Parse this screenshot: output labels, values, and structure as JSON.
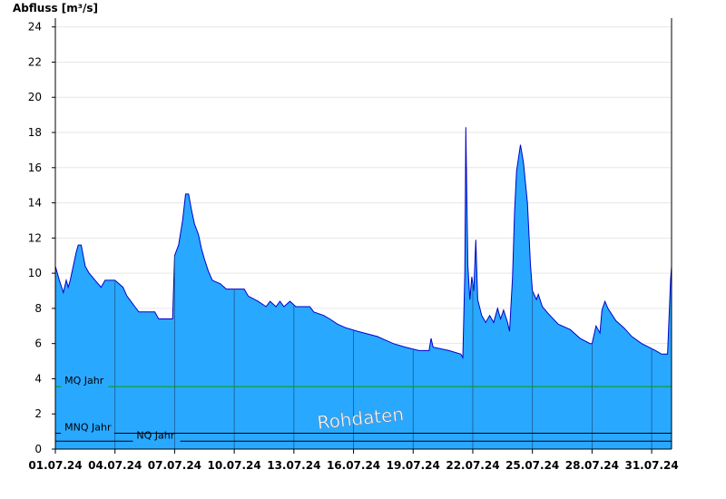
{
  "chart_data": {
    "type": "area",
    "ylabel": "Abfluss [m³/s]",
    "ylim": [
      0,
      24.5
    ],
    "yticks": [
      0,
      2,
      4,
      6,
      8,
      10,
      12,
      14,
      16,
      18,
      20,
      22,
      24
    ],
    "xlim": [
      0,
      31
    ],
    "xticks": [
      {
        "day": 0,
        "label": "01.07.24"
      },
      {
        "day": 3,
        "label": "04.07.24"
      },
      {
        "day": 6,
        "label": "07.07.24"
      },
      {
        "day": 9,
        "label": "10.07.24"
      },
      {
        "day": 12,
        "label": "13.07.24"
      },
      {
        "day": 15,
        "label": "16.07.24"
      },
      {
        "day": 18,
        "label": "19.07.24"
      },
      {
        "day": 21,
        "label": "22.07.24"
      },
      {
        "day": 24,
        "label": "25.07.24"
      },
      {
        "day": 27,
        "label": "28.07.24"
      },
      {
        "day": 30,
        "label": "31.07.24"
      }
    ],
    "grid": true,
    "fill_color": "#29a8ff",
    "line_color": "#0000cc",
    "series": [
      {
        "points": [
          [
            0.0,
            10.4
          ],
          [
            0.2,
            9.6
          ],
          [
            0.4,
            8.9
          ],
          [
            0.55,
            9.6
          ],
          [
            0.65,
            9.2
          ],
          [
            0.75,
            9.6
          ],
          [
            0.9,
            10.4
          ],
          [
            1.05,
            11.2
          ],
          [
            1.15,
            11.6
          ],
          [
            1.3,
            11.6
          ],
          [
            1.4,
            11.0
          ],
          [
            1.5,
            10.4
          ],
          [
            1.7,
            10.0
          ],
          [
            2.0,
            9.6
          ],
          [
            2.3,
            9.2
          ],
          [
            2.5,
            9.6
          ],
          [
            3.0,
            9.6
          ],
          [
            3.4,
            9.2
          ],
          [
            3.6,
            8.7
          ],
          [
            3.8,
            8.4
          ],
          [
            4.0,
            8.1
          ],
          [
            4.2,
            7.8
          ],
          [
            5.0,
            7.8
          ],
          [
            5.2,
            7.4
          ],
          [
            5.9,
            7.4
          ],
          [
            6.0,
            11.0
          ],
          [
            6.2,
            11.6
          ],
          [
            6.4,
            13.0
          ],
          [
            6.55,
            14.5
          ],
          [
            6.7,
            14.5
          ],
          [
            6.85,
            13.6
          ],
          [
            7.0,
            12.8
          ],
          [
            7.2,
            12.2
          ],
          [
            7.35,
            11.4
          ],
          [
            7.5,
            10.8
          ],
          [
            7.7,
            10.1
          ],
          [
            7.9,
            9.6
          ],
          [
            8.3,
            9.4
          ],
          [
            8.6,
            9.1
          ],
          [
            9.5,
            9.1
          ],
          [
            9.7,
            8.7
          ],
          [
            10.2,
            8.4
          ],
          [
            10.6,
            8.1
          ],
          [
            10.8,
            8.4
          ],
          [
            11.1,
            8.1
          ],
          [
            11.3,
            8.4
          ],
          [
            11.5,
            8.1
          ],
          [
            11.8,
            8.4
          ],
          [
            12.1,
            8.1
          ],
          [
            12.8,
            8.1
          ],
          [
            13.0,
            7.8
          ],
          [
            13.5,
            7.6
          ],
          [
            13.8,
            7.4
          ],
          [
            14.2,
            7.1
          ],
          [
            14.6,
            6.9
          ],
          [
            15.2,
            6.7
          ],
          [
            16.2,
            6.4
          ],
          [
            16.6,
            6.2
          ],
          [
            17.0,
            6.0
          ],
          [
            17.6,
            5.8
          ],
          [
            18.3,
            5.6
          ],
          [
            18.8,
            5.6
          ],
          [
            18.9,
            6.3
          ],
          [
            19.0,
            5.8
          ],
          [
            19.8,
            5.6
          ],
          [
            20.4,
            5.4
          ],
          [
            20.5,
            5.2
          ],
          [
            20.6,
            10.0
          ],
          [
            20.65,
            18.3
          ],
          [
            20.75,
            10.5
          ],
          [
            20.85,
            8.5
          ],
          [
            20.95,
            9.8
          ],
          [
            21.05,
            9.0
          ],
          [
            21.15,
            11.9
          ],
          [
            21.25,
            8.5
          ],
          [
            21.45,
            7.6
          ],
          [
            21.65,
            7.2
          ],
          [
            21.85,
            7.6
          ],
          [
            22.05,
            7.2
          ],
          [
            22.25,
            8.0
          ],
          [
            22.4,
            7.4
          ],
          [
            22.55,
            7.9
          ],
          [
            22.75,
            7.2
          ],
          [
            22.85,
            6.7
          ],
          [
            23.0,
            9.8
          ],
          [
            23.1,
            13.5
          ],
          [
            23.2,
            15.8
          ],
          [
            23.4,
            17.3
          ],
          [
            23.55,
            16.3
          ],
          [
            23.75,
            14.0
          ],
          [
            23.9,
            10.5
          ],
          [
            24.0,
            9.0
          ],
          [
            24.2,
            8.5
          ],
          [
            24.3,
            8.8
          ],
          [
            24.5,
            8.1
          ],
          [
            24.8,
            7.7
          ],
          [
            25.3,
            7.1
          ],
          [
            25.9,
            6.8
          ],
          [
            26.4,
            6.3
          ],
          [
            26.9,
            6.0
          ],
          [
            27.0,
            6.0
          ],
          [
            27.2,
            7.0
          ],
          [
            27.4,
            6.6
          ],
          [
            27.5,
            7.9
          ],
          [
            27.65,
            8.4
          ],
          [
            27.8,
            8.0
          ],
          [
            28.2,
            7.3
          ],
          [
            28.6,
            6.9
          ],
          [
            29.0,
            6.4
          ],
          [
            29.5,
            6.0
          ],
          [
            30.2,
            5.6
          ],
          [
            30.5,
            5.4
          ],
          [
            30.8,
            5.4
          ],
          [
            30.95,
            9.6
          ],
          [
            31.0,
            10.4
          ]
        ]
      }
    ],
    "reference_lines": [
      {
        "label": "MQ Jahr",
        "value": 3.55,
        "color": "#00a000",
        "label_day": 0.28
      },
      {
        "label": "MNQ Jahr",
        "value": 0.9,
        "color": "#000000",
        "label_day": 0.28
      },
      {
        "label": "NQ Jahr",
        "value": 0.45,
        "color": "#000000",
        "label_day": 3.9
      }
    ],
    "watermark": "Rohdaten"
  }
}
